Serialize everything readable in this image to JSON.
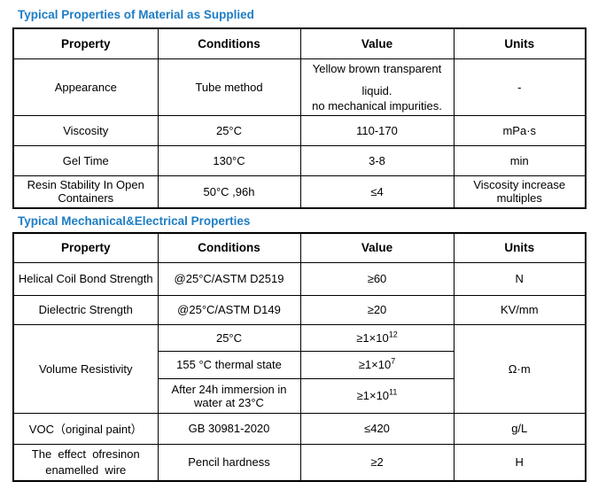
{
  "colors": {
    "title_blue": "#1D7DC4",
    "border": "#000000",
    "text": "#000000",
    "background": "#FFFFFF"
  },
  "section1": {
    "title": "Typical Properties of Material as Supplied",
    "headers": {
      "property": "Property",
      "conditions": "Conditions",
      "value": "Value",
      "units": "Units"
    },
    "rows": {
      "appearance": {
        "property": "Appearance",
        "conditions": "Tube method",
        "value_lines": [
          "Yellow brown transparent",
          "liquid.",
          "no mechanical impurities."
        ],
        "units": "-"
      },
      "viscosity": {
        "property": "Viscosity",
        "conditions": "25°C",
        "value": "110-170",
        "units": "mPa·s"
      },
      "gel_time": {
        "property": "Gel Time",
        "conditions": "130°C",
        "value": "3-8",
        "units": "min"
      },
      "resin_stability": {
        "property": "Resin Stability In Open Containers",
        "conditions": "50°C ,96h",
        "value": "≤4",
        "units": "Viscosity increase multiples"
      }
    }
  },
  "section2": {
    "title": "Typical Mechanical&Electrical Properties",
    "headers": {
      "property": "Property",
      "conditions": "Conditions",
      "value": "Value",
      "units": "Units"
    },
    "rows": {
      "helical": {
        "property": "Helical Coil Bond Strength",
        "conditions": "@25°C/ASTM D2519",
        "value": "≥60",
        "units": "N"
      },
      "dielectric": {
        "property": "Dielectric Strength",
        "conditions": "@25°C/ASTM D149",
        "value": "≥20",
        "units": "KV/mm"
      },
      "volume_resistivity": {
        "property": "Volume Resistivity",
        "units": "Ω·m",
        "sub_rows": [
          {
            "conditions": "25°C",
            "value_base": "≥1×10",
            "value_exp": "12"
          },
          {
            "conditions": "155 °C thermal state",
            "value_base": "≥1×10",
            "value_exp": "7"
          },
          {
            "conditions": "After 24h immersion in water at 23°C",
            "value_base": "≥1×10",
            "value_exp": "11"
          }
        ]
      },
      "voc": {
        "property": "VOC（original paint）",
        "conditions": "GB 30981-2020",
        "value": "≤420",
        "units": "g/L"
      },
      "resin_effect": {
        "property": "The  effect  ofresinon\nenamelled  wire",
        "conditions": "Pencil hardness",
        "value": "≥2",
        "units": "H"
      }
    }
  }
}
